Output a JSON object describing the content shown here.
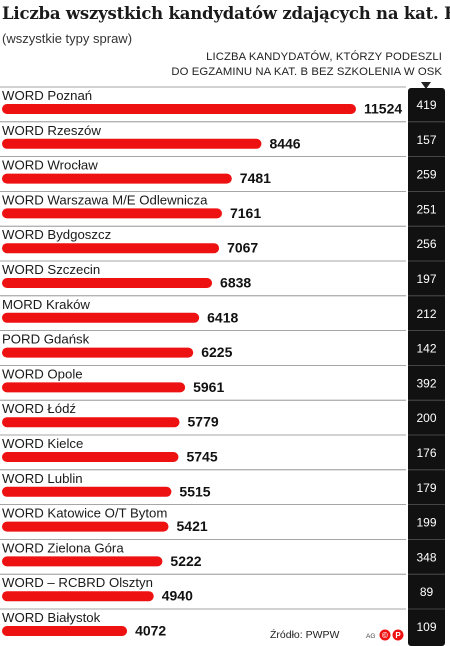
{
  "header": {
    "title": "Liczba wszystkich kandydatów zdających na kat. B",
    "subtitle": "(wszystkie typy spraw)",
    "column_header_line1": "LICZBA KANDYDATÓW, KTÓRZY PODESZLI",
    "column_header_line2": "DO EGZAMINU NA KAT. B BEZ SZKOLENIA W OSK"
  },
  "footer": {
    "source": "Źródło: PWPW",
    "logo_text": "AG"
  },
  "colors": {
    "bar": "#ee1111",
    "column_bg": "#111111",
    "column_text": "#ffffff",
    "row_line": "#888888"
  },
  "chart_data": {
    "type": "bar",
    "orientation": "horizontal",
    "title": "Liczba wszystkich kandydatów zdających na kat. B",
    "subtitle": "(wszystkie typy spraw)",
    "categories": [
      "WORD Poznań",
      "WORD Rzeszów",
      "WORD Wrocław",
      "WORD Warszawa M/E Odlewnicza",
      "WORD Bydgoszcz",
      "WORD Szczecin",
      "MORD Kraków",
      "PORD Gdańsk",
      "WORD Opole",
      "WORD Łódź",
      "WORD Kielce",
      "WORD Lublin",
      "WORD Katowice O/T Bytom",
      "WORD Zielona Góra",
      "WORD – RCBRD Olsztyn",
      "WORD Białystok"
    ],
    "series": [
      {
        "values": [
          11524,
          8446,
          7481,
          7161,
          7067,
          6838,
          6418,
          6225,
          5961,
          5779,
          5745,
          5515,
          5421,
          5222,
          4940,
          4072
        ],
        "labels": [
          "11524",
          "8446",
          "7481",
          "7161",
          "7067",
          "6838",
          "6418",
          "6225",
          "5961",
          "5779",
          "5745",
          "5515",
          "5421",
          "5222",
          "4940",
          "4072"
        ]
      },
      {
        "name": "LICZBA KANDYDATÓW, KTÓRZY PODESZLI DO EGZAMINU NA KAT. B BEZ SZKOLENIA W OSK",
        "values": [
          419,
          157,
          259,
          251,
          256,
          197,
          212,
          142,
          392,
          200,
          176,
          179,
          199,
          348,
          89,
          109
        ],
        "labels": [
          "419",
          "157",
          "259",
          "251",
          "256",
          "197",
          "212",
          "142",
          "392",
          "200",
          "176",
          "179",
          "199",
          "348",
          "89",
          "109"
        ]
      }
    ],
    "xlim": [
      0,
      11524
    ],
    "grid": false,
    "legend": "none"
  }
}
